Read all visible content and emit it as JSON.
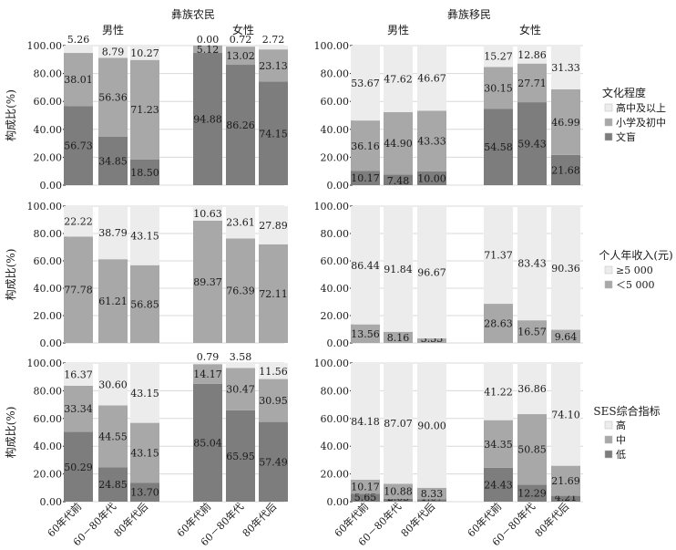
{
  "chart_data": {
    "type": "stacked-bar",
    "groups": {
      "farmers": "彝族农民",
      "migrants": "彝族移民",
      "male": "男性",
      "female": "女性"
    },
    "categories": [
      "60年代前",
      "60－80年代",
      "80年代后"
    ],
    "ylabel": "构成比(%)",
    "ylim": [
      0,
      100
    ],
    "yticks": [
      "0.00",
      "20.00",
      "40.00",
      "60.00",
      "80.00",
      "100.00"
    ],
    "colors": {
      "high": "#ececec",
      "mid": "#a8a8a8",
      "low": "#7d7d7d",
      "grid": "#d8d8d8",
      "axis": "#1a1a1a"
    },
    "rows": [
      {
        "legend_title": "文化程度",
        "legend": [
          "高中及以上",
          "小学及初中",
          "文盲"
        ],
        "panels": {
          "farmer_male": [
            [
              56.73,
              38.01,
              5.26
            ],
            [
              34.85,
              56.36,
              8.79
            ],
            [
              18.5,
              71.23,
              10.27
            ]
          ],
          "farmer_female": [
            [
              94.88,
              5.12,
              0.0
            ],
            [
              86.26,
              13.02,
              0.72
            ],
            [
              74.15,
              23.13,
              2.72
            ]
          ],
          "migrant_male": [
            [
              10.17,
              36.16,
              53.67
            ],
            [
              7.48,
              44.9,
              47.62
            ],
            [
              10.0,
              43.33,
              46.67
            ]
          ],
          "migrant_female": [
            [
              54.58,
              30.15,
              15.27
            ],
            [
              59.43,
              27.71,
              12.86
            ],
            [
              21.68,
              46.99,
              31.33
            ]
          ]
        },
        "labels": {
          "farmer_male": [
            [
              "56.73",
              "38.01",
              "5.26"
            ],
            [
              "34.85",
              "56.36",
              "8.79"
            ],
            [
              "18.50",
              "71.23",
              "10.27"
            ]
          ],
          "farmer_female": [
            [
              "94.88",
              "5.12",
              "0.00"
            ],
            [
              "86.26",
              "13.02",
              "0.72"
            ],
            [
              "74.15",
              "23.13",
              "2.72"
            ]
          ],
          "migrant_male": [
            [
              "10.17",
              "36.16",
              "53.67"
            ],
            [
              "7.48",
              "44.90",
              "47.62"
            ],
            [
              "10.00",
              "43.33",
              "46.67"
            ]
          ],
          "migrant_female": [
            [
              "54.58",
              "30.15",
              "15.27"
            ],
            [
              "59.43",
              "27.71",
              "12.86"
            ],
            [
              "21.68",
              "46.99",
              "31.33"
            ]
          ]
        }
      },
      {
        "legend_title": "个人年收入(元)",
        "legend": [
          "≥5 000",
          "＜5 000"
        ],
        "panels": {
          "farmer_male": [
            [
              77.78,
              22.22
            ],
            [
              61.21,
              38.79
            ],
            [
              56.85,
              43.15
            ]
          ],
          "farmer_female": [
            [
              89.37,
              10.63
            ],
            [
              76.39,
              23.61
            ],
            [
              72.11,
              27.89
            ]
          ],
          "migrant_male": [
            [
              13.56,
              86.44
            ],
            [
              8.16,
              91.84
            ],
            [
              3.33,
              96.67
            ]
          ],
          "migrant_female": [
            [
              28.63,
              71.37
            ],
            [
              16.57,
              83.43
            ],
            [
              9.64,
              90.36
            ]
          ]
        },
        "labels": {
          "farmer_male": [
            [
              "77.78",
              "22.22"
            ],
            [
              "61.21",
              "38.79"
            ],
            [
              "56.85",
              "43.15"
            ]
          ],
          "farmer_female": [
            [
              "89.37",
              "10.63"
            ],
            [
              "76.39",
              "23.61"
            ],
            [
              "72.11",
              "27.89"
            ]
          ],
          "migrant_male": [
            [
              "13.56",
              "86.44"
            ],
            [
              "8.16",
              "91.84"
            ],
            [
              "3.33",
              "96.67"
            ]
          ],
          "migrant_female": [
            [
              "28.63",
              "71.37"
            ],
            [
              "16.57",
              "83.43"
            ],
            [
              "9.64",
              "90.36"
            ]
          ]
        }
      },
      {
        "legend_title": "SES综合指标",
        "legend": [
          "高",
          "中",
          "低"
        ],
        "panels": {
          "farmer_male": [
            [
              50.29,
              33.34,
              16.37
            ],
            [
              24.85,
              44.55,
              30.6
            ],
            [
              13.7,
              43.15,
              43.15
            ]
          ],
          "farmer_female": [
            [
              85.04,
              14.17,
              0.79
            ],
            [
              65.95,
              30.47,
              3.58
            ],
            [
              57.49,
              30.95,
              11.56
            ]
          ],
          "migrant_male": [
            [
              5.65,
              10.17,
              84.18
            ],
            [
              2.05,
              10.88,
              87.07
            ],
            [
              1.67,
              8.33,
              90.0
            ]
          ],
          "migrant_female": [
            [
              24.43,
              34.35,
              41.22
            ],
            [
              12.29,
              50.85,
              36.86
            ],
            [
              4.21,
              21.69,
              74.1
            ]
          ]
        },
        "labels": {
          "farmer_male": [
            [
              "50.29",
              "33.34",
              "16.37"
            ],
            [
              "24.85",
              "44.55",
              "30.60"
            ],
            [
              "13.70",
              "43.15",
              "43.15"
            ]
          ],
          "farmer_female": [
            [
              "85.04",
              "14.17",
              "0.79"
            ],
            [
              "65.95",
              "30.47",
              "3.58"
            ],
            [
              "57.49",
              "30.95",
              "11.56"
            ]
          ],
          "migrant_male": [
            [
              "5.65",
              "10.17",
              "84.18"
            ],
            [
              "2.05",
              "10.88",
              "87.07"
            ],
            [
              "1.67",
              "8.33",
              "90.00"
            ]
          ],
          "migrant_female": [
            [
              "24.43",
              "34.35",
              "41.22"
            ],
            [
              "12.29",
              "50.85",
              "36.86"
            ],
            [
              "4.21",
              "21.69",
              "74.10"
            ]
          ]
        }
      }
    ]
  }
}
